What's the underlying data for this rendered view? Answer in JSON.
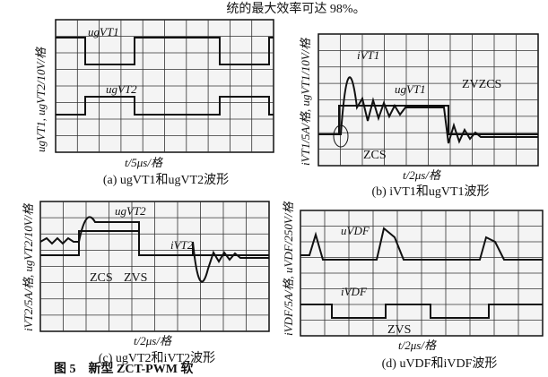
{
  "header": {
    "text": "统的最大效率可达 98%。"
  },
  "panels": [
    {
      "ylabel": "ugVT1, ugVT2/10V/格",
      "xlabel": "t/5μs/格",
      "caption": "(a) ugVT1和ugVT2波形",
      "labels": [
        "ugVT1",
        "ugVT2"
      ]
    },
    {
      "ylabel": "iVT1/5A/格, ugVT1/10V/格",
      "xlabel": "t/2μs/格",
      "caption": "(b) iVT1和ugVT1波形",
      "labels": [
        "iVT1",
        "ugVT1",
        "ZVZCS",
        "ZCS"
      ]
    },
    {
      "ylabel": "iVT2/5A/格, ugVT2/10V/格",
      "xlabel": "t/2μs/格",
      "caption": "(c) ugVT2和iVT2波形",
      "labels": [
        "ugVT2",
        "iVT2",
        "ZCS",
        "ZVS"
      ]
    },
    {
      "ylabel": "iVDF/5A/格, uVDF/250V/格",
      "xlabel": "t/2μs/格",
      "caption": "(d) uVDF和iVDF波形",
      "labels": [
        "uVDF",
        "iVDF",
        "ZVS"
      ]
    }
  ],
  "footer": {
    "text": "图 5　新型 ZCT-PWM 软"
  }
}
